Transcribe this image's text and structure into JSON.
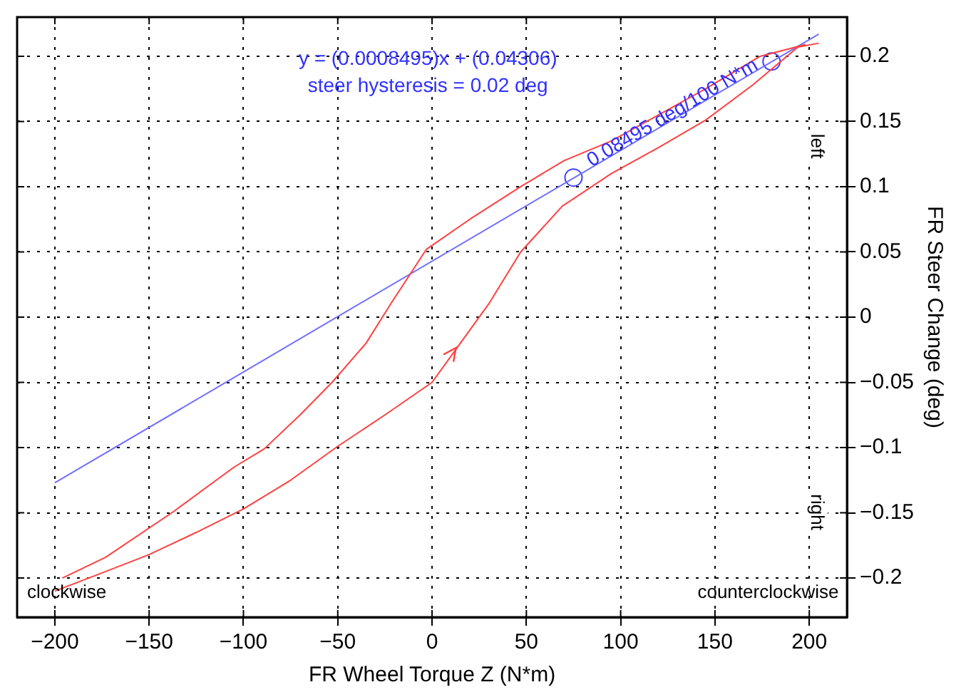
{
  "chart_data": {
    "type": "line",
    "xlabel": "FR Wheel Torque Z (N*m)",
    "ylabel": "FR Steer Change (deg)",
    "xlim": [
      -220,
      220
    ],
    "ylim": [
      -0.23,
      0.23
    ],
    "xticks": [
      -200,
      -150,
      -100,
      -50,
      0,
      50,
      100,
      150,
      200
    ],
    "yticks": [
      -0.2,
      -0.15,
      -0.1,
      -0.05,
      0,
      0.05,
      0.1,
      0.15,
      0.2
    ],
    "grid": true,
    "line_style": "solid",
    "series": [
      {
        "color": "#ff4040",
        "x": [
          -200,
          -173,
          -150,
          -125,
          -100,
          -75,
          -50,
          -25,
          0,
          13,
          30,
          47,
          69,
          95,
          120,
          145,
          170,
          194,
          205
        ],
        "values": [
          -0.21,
          -0.195,
          -0.182,
          -0.165,
          -0.147,
          -0.125,
          -0.099,
          -0.075,
          -0.05,
          -0.024,
          0.01,
          0.05,
          0.085,
          0.11,
          0.13,
          0.151,
          0.178,
          0.207,
          0.21
        ]
      },
      {
        "type": "line",
        "color": "#ff4040",
        "x": [
          -196,
          -173,
          -137,
          -105,
          -89,
          -70,
          -53,
          -35,
          -22,
          -3,
          20,
          47,
          70,
          95,
          120,
          145,
          174,
          198
        ],
        "values": [
          -0.2,
          -0.184,
          -0.149,
          -0.115,
          -0.101,
          -0.075,
          -0.05,
          -0.02,
          0.01,
          0.052,
          0.075,
          0.1,
          0.12,
          0.135,
          0.155,
          0.175,
          0.2,
          0.209
        ]
      },
      {
        "type": "line",
        "color": "#6f6fff",
        "x": [
          -200,
          205
        ],
        "values": [
          -0.127,
          0.217
        ]
      },
      {
        "type": "scatter",
        "marker": "circle",
        "color": "#4040ff",
        "x": [
          75,
          180
        ],
        "values": [
          0.107,
          0.196
        ]
      }
    ],
    "annotations": [
      "y = (0.0008495)x + (0.04306)",
      "steer hysteresis = 0.02 deg",
      "0.08495 deg/100 N*m",
      "left",
      "right",
      "clockwise",
      "counterclockwise"
    ]
  }
}
